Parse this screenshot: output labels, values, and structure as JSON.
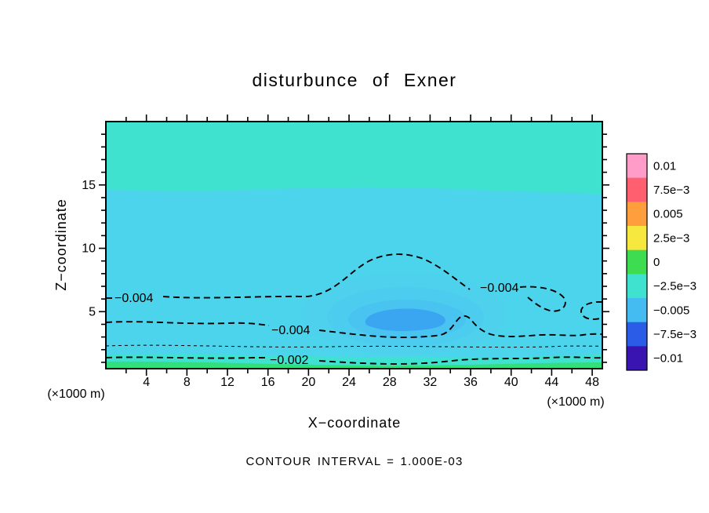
{
  "title": "disturbunce of Exner",
  "axes": {
    "x_label": "X−coordinate",
    "z_label": "Z−coordinate",
    "unit": "(×1000 m)",
    "x_ticks": [
      "4",
      "8",
      "12",
      "16",
      "20",
      "24",
      "28",
      "32",
      "36",
      "40",
      "44",
      "48"
    ],
    "z_ticks": [
      "5",
      "10",
      "15"
    ]
  },
  "caption": "CONTOUR INTERVAL = 1.000E-03",
  "contours": {
    "labels": [
      "−0.004",
      "−0.004",
      "−0.004",
      "−0.002"
    ]
  },
  "colorbar": {
    "segments": [
      {
        "label": "0.01",
        "color": "#FF9CC8"
      },
      {
        "label": "7.5e−3",
        "color": "#FF5F6E"
      },
      {
        "label": "0.005",
        "color": "#FF9E3C"
      },
      {
        "label": "2.5e−3",
        "color": "#F6E83E"
      },
      {
        "label": "0",
        "color": "#3EDC50"
      },
      {
        "label": "−2.5e−3",
        "color": "#3EE2CE"
      },
      {
        "label": "−0.005",
        "color": "#44BCF2"
      },
      {
        "label": "−7.5e−3",
        "color": "#2B5CE8"
      },
      {
        "label": "−0.01",
        "color": "#3A14B0"
      }
    ]
  },
  "plot_colors": {
    "upper_band": "#3FE2CF",
    "mid_band": "#4CD4EC",
    "transition_strip": "#3FE2D0",
    "min_core": "#3AA6F2",
    "surface_band": "#32DF7C",
    "tint_outer": "#4FC9F0",
    "tint_mid": "#4AC2F2",
    "tint_inner": "#46BAF2"
  },
  "chart_data": {
    "type": "heatmap",
    "title": "disturbunce of Exner",
    "xlabel": "X−coordinate (×1000 m)",
    "ylabel": "Z−coordinate (×1000 m)",
    "xlim": [
      0,
      49
    ],
    "ylim": [
      0.5,
      20
    ],
    "grid": false,
    "legend_position": "right-colorbar",
    "contour_interval": 0.001,
    "contour_interval_text": "CONTOUR INTERVAL = 1.000E-03",
    "colorbar_values": [
      0.01,
      0.0075,
      0.005,
      0.0025,
      0,
      -0.0025,
      -0.005,
      -0.0075,
      -0.01
    ],
    "labeled_contour_levels": [
      -0.004,
      -0.002
    ],
    "contours": [
      {
        "level": -0.004,
        "style": "bold-dashed",
        "path_desc": "upper branch: from z≈6 at x=0, level to x≈20, doming to z≈9.3 near x≈27–31, descending to z≈6 near x≈37, wavy loop near x≈42–45, open arc at right edge near z≈4.5–5.5"
      },
      {
        "level": -0.004,
        "style": "bold-dashed",
        "path_desc": "lower branch: near z≈3.5–4 across full width, dipping to z≈2.8 under the minimum core, sharp bump to z≈4.6 at x≈34.5"
      },
      {
        "level": -0.003,
        "style": "thin-dashed",
        "path_desc": "nearly level line at z≈2 across full width"
      },
      {
        "level": -0.002,
        "style": "bold-dashed",
        "path_desc": "nearly level line at z≈1.2–1.5, dipping slightly near x≈28–32"
      }
    ],
    "fill_regions": [
      {
        "value_range": [
          -0.0025,
          0
        ],
        "desc": "upper layer z≈14–20",
        "color": "#3FE2CF"
      },
      {
        "value_range": [
          -0.005,
          -0.0025
        ],
        "desc": "main layer z≈1.5–14",
        "color": "#4CD4EC"
      },
      {
        "value_range": [
          -0.007,
          -0.005
        ],
        "desc": "minimum core x≈26–34, z≈3.5–5",
        "color": "#3AA6F2"
      },
      {
        "value_range": [
          0,
          0.0025
        ],
        "desc": "surface layer z≈0.5–1.5",
        "color": "#32DF7C"
      }
    ]
  }
}
